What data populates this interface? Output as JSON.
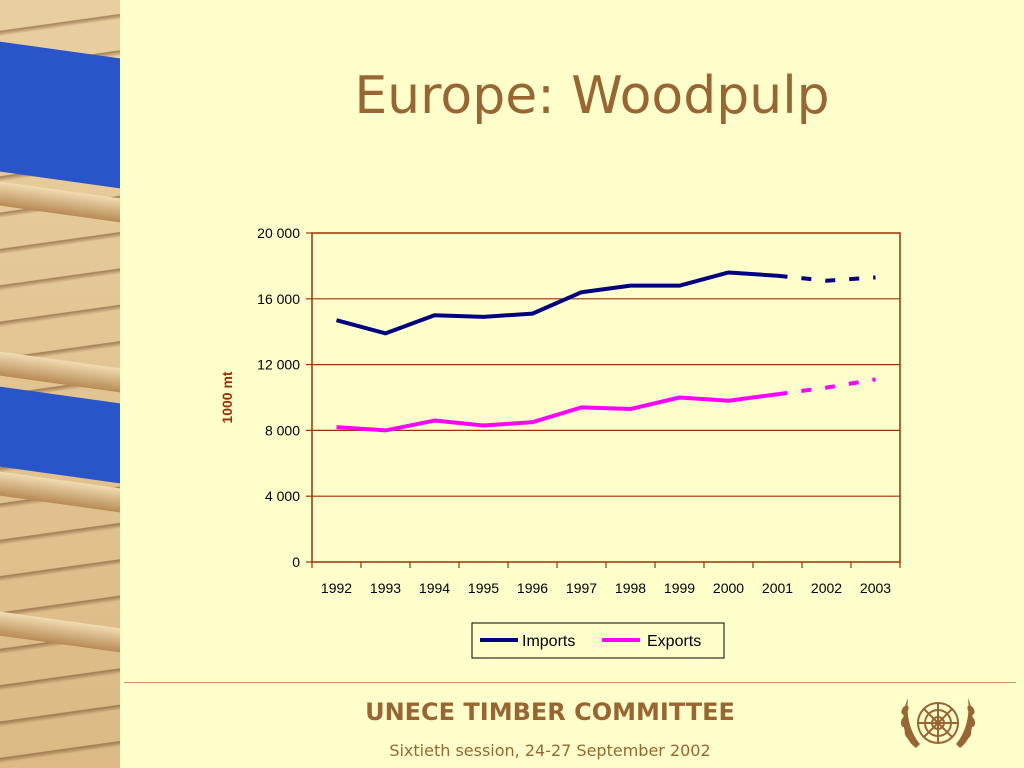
{
  "slide": {
    "title": "Europe: Woodpulp",
    "footer_org": "UNECE TIMBER COMMITTEE",
    "footer_session": "Sixtieth session, 24-27 September 2002"
  },
  "colors": {
    "background": "#ffffcc",
    "title": "#996633",
    "axis_label": "#993300",
    "imports": "#000080",
    "exports": "#ff00ff",
    "gridline": "#993300"
  },
  "icons": {
    "logo": "un-emblem-icon"
  },
  "chart_data": {
    "type": "line",
    "title": "",
    "xlabel": "",
    "ylabel": "1000 mt",
    "ylim": [
      0,
      20000
    ],
    "y_ticks": [
      0,
      4000,
      8000,
      12000,
      16000,
      20000
    ],
    "y_tick_labels": [
      "0",
      "4 000",
      "8 000",
      "12 000",
      "16 000",
      "20 000"
    ],
    "categories": [
      "1992",
      "1993",
      "1994",
      "1995",
      "1996",
      "1997",
      "1998",
      "1999",
      "2000",
      "2001",
      "2002",
      "2003"
    ],
    "grid": true,
    "legend_position": "bottom-center",
    "forecast_from": "2001",
    "series": [
      {
        "name": "Imports",
        "color": "#000080",
        "values": [
          14700,
          13900,
          15000,
          14900,
          15100,
          16400,
          16800,
          16800,
          17600,
          17400,
          17100,
          17300
        ]
      },
      {
        "name": "Exports",
        "color": "#ff00ff",
        "values": [
          8200,
          8000,
          8600,
          8300,
          8500,
          9400,
          9300,
          10000,
          9800,
          10200,
          10600,
          11100
        ]
      }
    ]
  }
}
